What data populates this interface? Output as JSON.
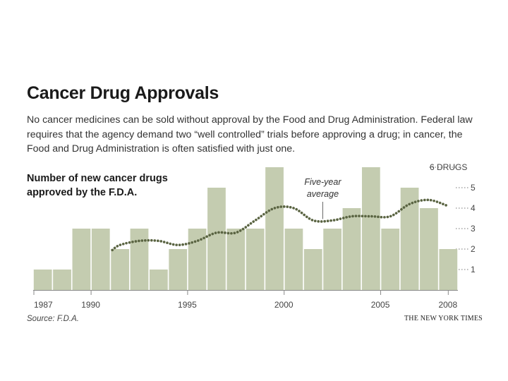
{
  "chart_data": {
    "type": "bar",
    "title": "Cancer Drug Approvals",
    "subtitle": "No cancer medicines can be sold without approval by the Food and Drug Administration. Federal law requires that the agency demand two “well controlled” trials before approving a drug; in cancer, the Food and Drug Administration is often satisfied with just one.",
    "chart_heading": "Number of new cancer drugs approved by the F.D.A.",
    "x": [
      1987,
      1988,
      1989,
      1990,
      1991,
      1992,
      1993,
      1994,
      1995,
      1996,
      1997,
      1998,
      1999,
      2000,
      2001,
      2002,
      2003,
      2004,
      2005,
      2006,
      2007,
      2008
    ],
    "values": [
      1,
      1,
      3,
      3,
      2,
      3,
      1,
      2,
      3,
      5,
      3,
      3,
      6,
      3,
      2,
      3,
      4,
      6,
      3,
      5,
      4,
      2
    ],
    "xtick_labels": [
      {
        "year": 1987,
        "label": "1987"
      },
      {
        "year": 1990,
        "label": "1990"
      },
      {
        "year": 1995,
        "label": "1995"
      },
      {
        "year": 2000,
        "label": "2000"
      },
      {
        "year": 2005,
        "label": "2005"
      },
      {
        "year": 2008,
        "label": "2008"
      }
    ],
    "ytick_labels": [
      {
        "value": 1,
        "label": "1"
      },
      {
        "value": 2,
        "label": "2"
      },
      {
        "value": 3,
        "label": "3"
      },
      {
        "value": 4,
        "label": "4"
      },
      {
        "value": 5,
        "label": "5"
      },
      {
        "value": 6,
        "label": "6 DRUGS"
      }
    ],
    "ylim": [
      0,
      6
    ],
    "average_series": {
      "name": "Five-year average",
      "x": [
        1990.6,
        1991,
        1992,
        1993,
        1994,
        1995,
        1996,
        1997,
        1998,
        1999,
        2000,
        2001,
        2002,
        2003,
        2004,
        2005,
        2006,
        2007,
        2008
      ],
      "values": [
        1.95,
        2.2,
        2.4,
        2.4,
        2.2,
        2.4,
        2.8,
        2.8,
        3.4,
        4.0,
        4.0,
        3.4,
        3.4,
        3.6,
        3.6,
        3.6,
        4.2,
        4.4,
        4.1
      ]
    },
    "annotation": {
      "line1": "Five-year",
      "line2": "average",
      "x": 2001.5,
      "y": 3.4
    },
    "source": "Source: F.D.A.",
    "credit": "THE NEW YORK TIMES",
    "colors": {
      "bar": "#c4ccb0",
      "average_line": "#5a6442",
      "text": "#222222"
    }
  }
}
